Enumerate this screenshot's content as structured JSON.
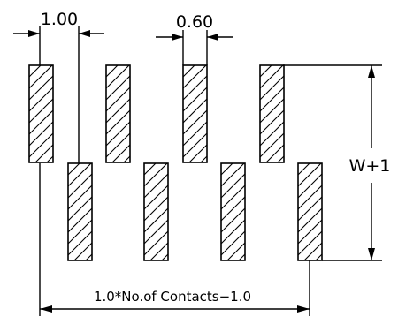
{
  "drawing": {
    "pitch_label": "1.00",
    "pad_width_label": "0.60",
    "span_label": "1.0*No.of Contacts−1.0",
    "height_label": "W+1",
    "top_row_pads": 4,
    "bottom_row_pads": 4,
    "pad_hatch": "diagonal-hatch"
  }
}
